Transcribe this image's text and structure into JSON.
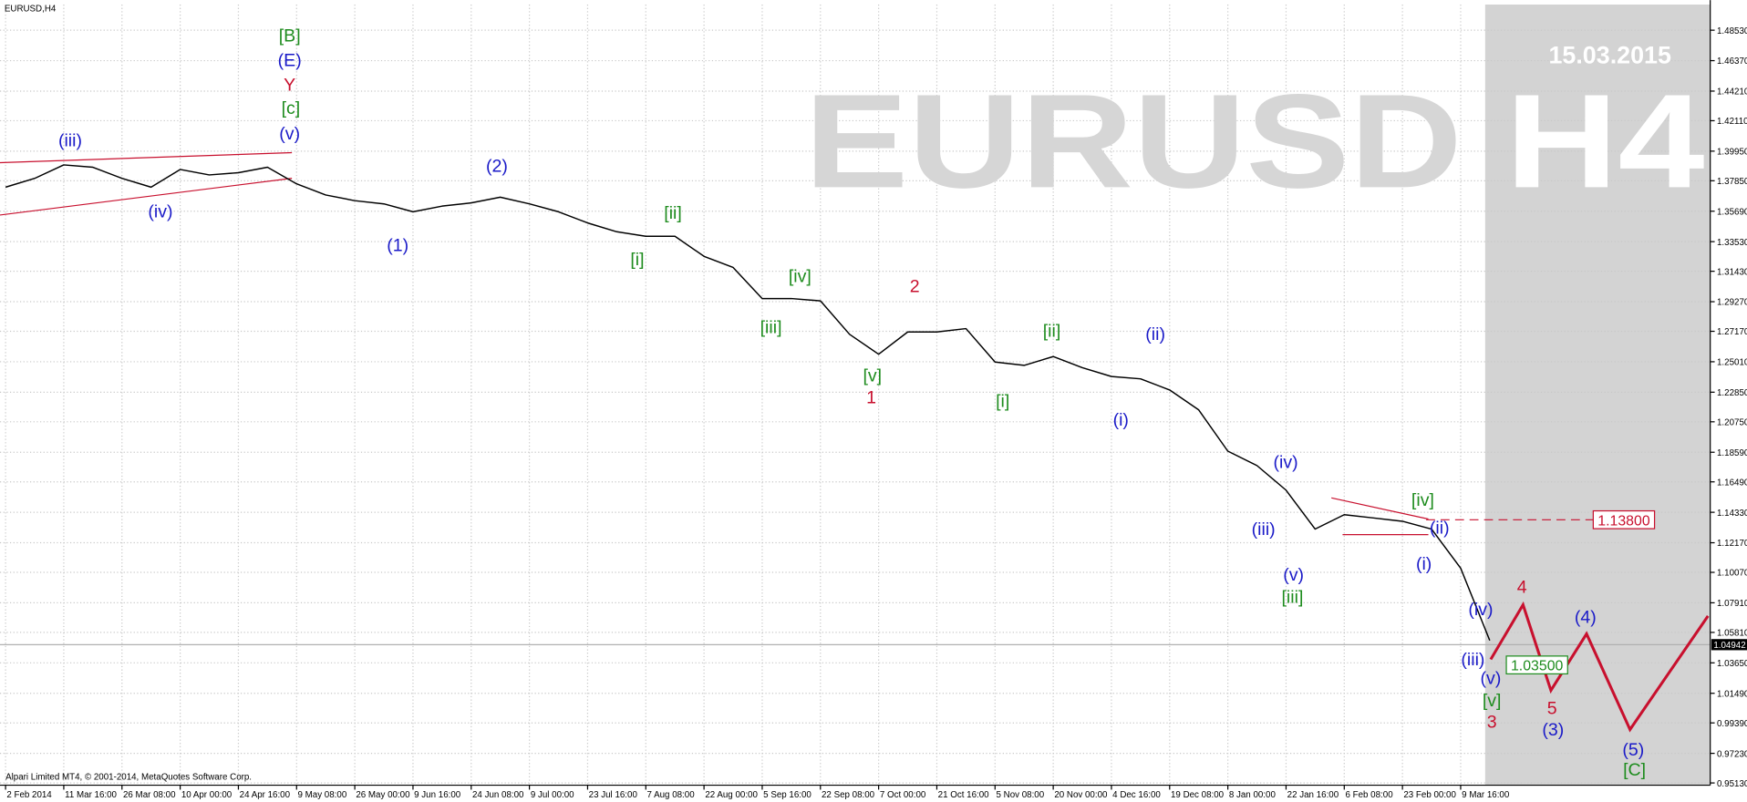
{
  "chart_data": {
    "type": "line",
    "title": "EURUSD,H4",
    "watermark": "EURUSD H4",
    "date_stamp": "15.03.2015",
    "footer": "Alpari Limited MT4, © 2001-2014, MetaQuotes Software Corp.",
    "categories": [
      "2 Feb 2014",
      null,
      "11 Mar 16:00",
      null,
      "26 Mar 08:00",
      null,
      "10 Apr 00:00",
      null,
      "24 Apr 16:00",
      null,
      "9 May 08:00",
      null,
      "26 May 00:00",
      null,
      "9 Jun 16:00",
      null,
      "24 Jun 08:00",
      null,
      "9 Jul 00:00",
      null,
      "23 Jul 16:00",
      null,
      "7 Aug 08:00",
      null,
      "22 Aug 00:00",
      null,
      "5 Sep 16:00",
      null,
      "22 Sep 08:00",
      null,
      "7 Oct 00:00",
      null,
      "21 Oct 16:00",
      null,
      "5 Nov 08:00",
      null,
      "20 Nov 00:00",
      null,
      "4 Dec 16:00",
      null,
      "19 Dec 08:00",
      null,
      "8 Jan 00:00",
      null,
      "22 Jan 16:00",
      null,
      "6 Feb 08:00",
      null,
      "23 Feb 00:00",
      null,
      "9 Mar 16:00",
      null
    ],
    "series": [
      {
        "name": "EURUSD",
        "color": "#000000",
        "values": [
          1.3739,
          1.3802,
          1.3897,
          1.3881,
          1.3802,
          1.3739,
          1.3865,
          1.3826,
          1.3842,
          1.3881,
          1.3763,
          1.3684,
          1.3644,
          1.3621,
          1.3565,
          1.3605,
          1.3628,
          1.3668,
          1.3621,
          1.3565,
          1.3486,
          1.3423,
          1.3391,
          1.3391,
          1.3249,
          1.317,
          1.2949,
          1.2949,
          1.2933,
          1.2696,
          1.2554,
          1.2712,
          1.2712,
          1.2736,
          1.2499,
          1.2475,
          1.2538,
          1.2459,
          1.2396,
          1.238,
          1.2301,
          1.2159,
          1.1867,
          1.1764,
          1.159,
          1.1314,
          1.1416,
          1.1393,
          1.1369,
          1.1314,
          1.1037,
          1.0524
        ]
      }
    ],
    "forecast": {
      "color": "#c8102e",
      "values": [
        1.039,
        1.0777,
        1.0169,
        1.0571,
        0.9892,
        1.0698
      ]
    },
    "ylim": [
      0.9497,
      1.5035
    ],
    "yticks": [
      {
        "value": 1.4853,
        "label": "1.48530"
      },
      {
        "value": 1.4637,
        "label": "1.46370"
      },
      {
        "value": 1.4421,
        "label": "1.44210"
      },
      {
        "value": 1.4211,
        "label": "1.42110"
      },
      {
        "value": 1.3995,
        "label": "1.39950"
      },
      {
        "value": 1.3785,
        "label": "1.37850"
      },
      {
        "value": 1.3569,
        "label": "1.35690"
      },
      {
        "value": 1.3353,
        "label": "1.33530"
      },
      {
        "value": 1.3143,
        "label": "1.31430"
      },
      {
        "value": 1.2927,
        "label": "1.29270"
      },
      {
        "value": 1.2717,
        "label": "1.27170"
      },
      {
        "value": 1.2501,
        "label": "1.25010"
      },
      {
        "value": 1.2285,
        "label": "1.22850"
      },
      {
        "value": 1.2075,
        "label": "1.20750"
      },
      {
        "value": 1.1859,
        "label": "1.18590"
      },
      {
        "value": 1.1649,
        "label": "1.16490"
      },
      {
        "value": 1.1433,
        "label": "1.14330"
      },
      {
        "value": 1.1217,
        "label": "1.12170"
      },
      {
        "value": 1.1007,
        "label": "1.10070"
      },
      {
        "value": 1.0791,
        "label": "1.07910"
      },
      {
        "value": 1.0581,
        "label": "1.05810"
      },
      {
        "value": 1.0365,
        "label": "1.03650"
      },
      {
        "value": 1.0149,
        "label": "1.01490"
      },
      {
        "value": 0.9939,
        "label": "0.99390"
      },
      {
        "value": 0.9723,
        "label": "0.97230"
      },
      {
        "value": 0.9513,
        "label": "0.95130"
      }
    ],
    "grid": true,
    "current_price": {
      "value": 1.04942,
      "label": "1.04942"
    },
    "levels": [
      {
        "value": 1.138,
        "label": "1.13800",
        "color": "#c8102e"
      },
      {
        "value": 1.035,
        "label": "1.03500",
        "color": "#1e8c1e"
      }
    ],
    "annotations": [
      {
        "text": "[B]",
        "color": "#1e8c1e"
      },
      {
        "text": "(E)",
        "color": "#1a1ac8"
      },
      {
        "text": "Y",
        "color": "#c8102e"
      },
      {
        "text": "[c]",
        "color": "#1e8c1e"
      },
      {
        "text": "(v)",
        "color": "#1a1ac8"
      },
      {
        "text": "(iii)",
        "color": "#1a1ac8"
      },
      {
        "text": "(iv)",
        "color": "#1a1ac8"
      },
      {
        "text": "(1)",
        "color": "#1a1ac8"
      },
      {
        "text": "(2)",
        "color": "#1a1ac8"
      },
      {
        "text": "[ii]",
        "color": "#1e8c1e"
      },
      {
        "text": "[i]",
        "color": "#1e8c1e"
      },
      {
        "text": "[iv]",
        "color": "#1e8c1e"
      },
      {
        "text": "[iii]",
        "color": "#1e8c1e"
      },
      {
        "text": "[v]",
        "color": "#1e8c1e"
      },
      {
        "text": "1",
        "color": "#c8102e"
      },
      {
        "text": "2",
        "color": "#c8102e"
      },
      {
        "text": "[ii]",
        "color": "#1e8c1e"
      },
      {
        "text": "[i]",
        "color": "#1e8c1e"
      },
      {
        "text": "(ii)",
        "color": "#1a1ac8"
      },
      {
        "text": "(i)",
        "color": "#1a1ac8"
      },
      {
        "text": "(iv)",
        "color": "#1a1ac8"
      },
      {
        "text": "(iii)",
        "color": "#1a1ac8"
      },
      {
        "text": "(v)",
        "color": "#1a1ac8"
      },
      {
        "text": "[iii]",
        "color": "#1e8c1e"
      },
      {
        "text": "[iv]",
        "color": "#1e8c1e"
      },
      {
        "text": "(ii)",
        "color": "#1a1ac8"
      },
      {
        "text": "(i)",
        "color": "#1a1ac8"
      },
      {
        "text": "(iv)",
        "color": "#1a1ac8"
      },
      {
        "text": "(iii)",
        "color": "#1a1ac8"
      },
      {
        "text": "(v)",
        "color": "#1a1ac8"
      },
      {
        "text": "[v]",
        "color": "#1e8c1e"
      },
      {
        "text": "3",
        "color": "#c8102e"
      },
      {
        "text": "4",
        "color": "#c8102e"
      },
      {
        "text": "5",
        "color": "#c8102e"
      },
      {
        "text": "(3)",
        "color": "#1a1ac8"
      },
      {
        "text": "(4)",
        "color": "#1a1ac8"
      },
      {
        "text": "(5)",
        "color": "#1a1ac8"
      },
      {
        "text": "[C]",
        "color": "#1e8c1e"
      }
    ]
  }
}
